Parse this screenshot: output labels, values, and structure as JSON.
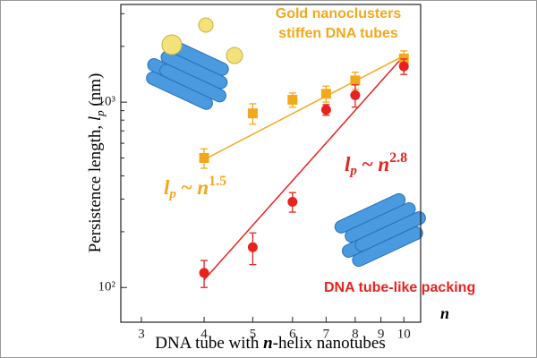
{
  "chart_data": {
    "type": "scatter",
    "x_label": {
      "pre": "DNA tube with ",
      "var": "n",
      "post": "-helix nanotubes"
    },
    "y_label": {
      "pre": "Persistence length, ",
      "var": "l",
      "sub": "p",
      "post": " (nm)"
    },
    "x_axis_symbol": "n",
    "xlog": true,
    "ylog": true,
    "xlim": [
      2.73,
      10.8
    ],
    "ylim": [
      65,
      3365
    ],
    "xticks": [
      3,
      4,
      5,
      6,
      7,
      8,
      9,
      10
    ],
    "yticks": [
      {
        "value": 100,
        "label": "10²"
      },
      {
        "value": 1000,
        "label": "10³"
      }
    ],
    "yminorticks": [
      200,
      300,
      400,
      500,
      600,
      700,
      800,
      900,
      2000,
      3000
    ],
    "series": [
      {
        "marker": "square",
        "color": "#f2a81d",
        "x": [
          4,
          5,
          6,
          7,
          8,
          10
        ],
        "values": [
          500,
          870,
          1030,
          1110,
          1310,
          1720
        ],
        "errors": [
          60,
          110,
          90,
          110,
          140,
          170
        ]
      },
      {
        "marker": "circle",
        "color": "#e8231f",
        "x": [
          4,
          5,
          6,
          7,
          8,
          10
        ],
        "values": [
          120,
          165,
          290,
          910,
          1090,
          1560
        ],
        "errors": [
          20,
          32,
          35,
          60,
          150,
          150
        ]
      }
    ],
    "fits": [
      {
        "color": "#f2a81d",
        "x": [
          4,
          10
        ],
        "values": [
          490,
          1780
        ]
      },
      {
        "color": "#e8231f",
        "x": [
          4,
          10
        ],
        "values": [
          110,
          1780
        ]
      }
    ],
    "annotations": {
      "gold": [
        "Gold nanoclusters",
        "stiffen DNA tubes"
      ],
      "packing": "DNA tube-like packing",
      "fit_labels": [
        {
          "l": "l",
          "sub": "p",
          "mid": " ~ ",
          "n": "n",
          "sup": "1.5",
          "color": "#f2a81d"
        },
        {
          "l": "l",
          "sub": "p",
          "mid": " ~ ",
          "n": "n",
          "sup": "2.8",
          "color": "#e8231f"
        }
      ]
    }
  }
}
